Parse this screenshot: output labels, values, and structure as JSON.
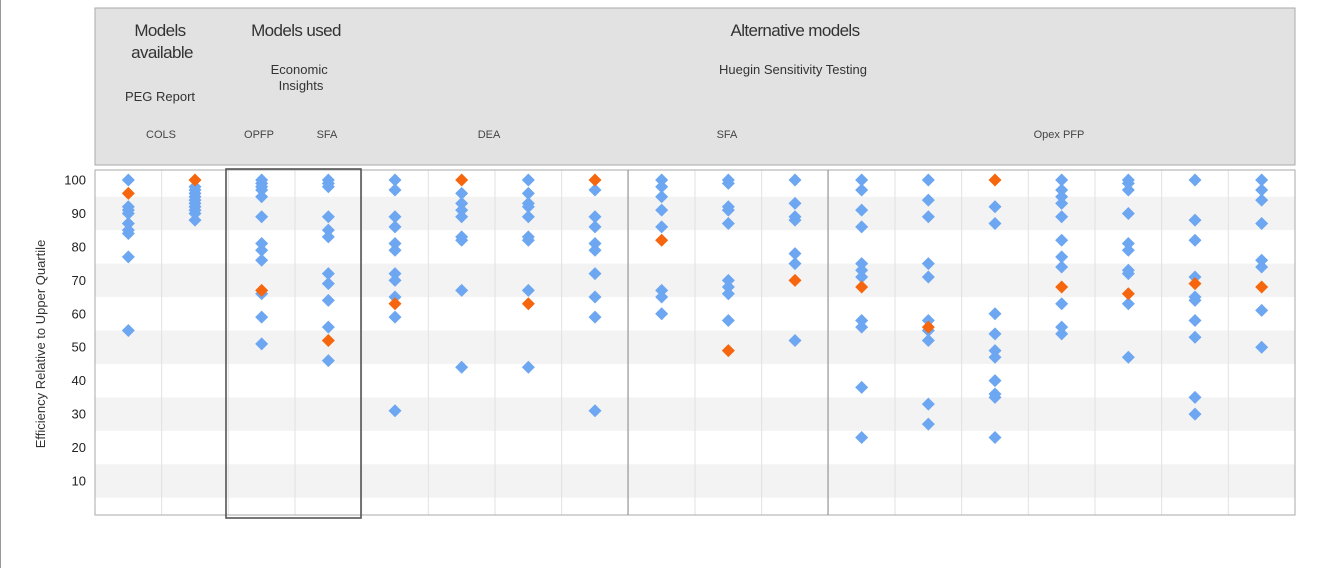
{
  "header": {
    "group_titles": [
      {
        "id": "models-available",
        "lines": [
          "Models",
          "available"
        ]
      },
      {
        "id": "models-used",
        "lines": [
          "Models used"
        ]
      },
      {
        "id": "alternative-models",
        "lines": [
          "Alternative models"
        ]
      }
    ],
    "sources": [
      {
        "id": "peg-report",
        "lines": [
          "PEG Report"
        ]
      },
      {
        "id": "economic-insights",
        "lines": [
          "Economic",
          "Insights"
        ]
      },
      {
        "id": "huegin-testing",
        "lines": [
          "Huegin Sensitivity Testing"
        ]
      }
    ],
    "method_labels": [
      "COLS",
      "OPFP",
      "SFA",
      "DEA",
      "SFA",
      "Opex PFP"
    ]
  },
  "colors": {
    "header_bg": "#e2e2e2",
    "band": "#f3f3f3",
    "border": "#aaaaaa",
    "other": "#6da6f1",
    "highlight": "#f5660f"
  },
  "chart_data": {
    "type": "scatter",
    "ylabel": "Efficiency Relative to Upper Quartile",
    "ylim": [
      0,
      100
    ],
    "yticks": [
      10,
      20,
      30,
      40,
      50,
      60,
      70,
      80,
      90,
      100
    ],
    "highlight_outlined_columns": [
      2,
      3
    ],
    "columns": [
      {
        "group": "COLS",
        "values": [
          100,
          91,
          90,
          92,
          87,
          84,
          85,
          77,
          55
        ],
        "highlight": 96
      },
      {
        "group": "COLS",
        "values": [
          98,
          97,
          96,
          95,
          94,
          93,
          92,
          91,
          90,
          88
        ],
        "highlight": 100
      },
      {
        "group": "OPFP",
        "values": [
          100,
          99,
          98,
          97,
          95,
          89,
          81,
          79,
          76,
          66,
          59,
          51
        ],
        "highlight": 67
      },
      {
        "group": "SFA",
        "values": [
          100,
          99,
          98,
          89,
          85,
          83,
          72,
          69,
          64,
          56,
          46
        ],
        "highlight": 52
      },
      {
        "group": "DEA",
        "values": [
          100,
          97,
          89,
          86,
          81,
          79,
          72,
          70,
          65,
          59,
          31
        ],
        "highlight": 63
      },
      {
        "group": "DEA",
        "values": [
          96,
          93,
          91,
          89,
          83,
          82,
          67,
          44
        ],
        "highlight": 100
      },
      {
        "group": "DEA",
        "values": [
          100,
          96,
          93,
          92,
          89,
          83,
          82,
          67,
          44
        ],
        "highlight": 63
      },
      {
        "group": "DEA",
        "values": [
          97,
          89,
          86,
          81,
          79,
          72,
          65,
          59,
          31
        ],
        "highlight": 100
      },
      {
        "group": "SFA",
        "values": [
          100,
          98,
          95,
          91,
          86,
          67,
          65,
          60
        ],
        "highlight": 82
      },
      {
        "group": "SFA",
        "values": [
          100,
          99,
          92,
          91,
          87,
          70,
          68,
          66,
          58
        ],
        "highlight": 49
      },
      {
        "group": "SFA",
        "values": [
          100,
          93,
          89,
          88,
          78,
          75,
          52
        ],
        "highlight": 70
      },
      {
        "group": "Opex PFP",
        "values": [
          100,
          97,
          91,
          86,
          75,
          73,
          71,
          58,
          56,
          38,
          23
        ],
        "highlight": 68
      },
      {
        "group": "Opex PFP",
        "values": [
          100,
          94,
          89,
          75,
          71,
          58,
          55,
          52,
          33,
          27
        ],
        "highlight": 56
      },
      {
        "group": "Opex PFP",
        "values": [
          92,
          87,
          60,
          54,
          49,
          47,
          40,
          36,
          35,
          23
        ],
        "highlight": 100
      },
      {
        "group": "Opex PFP",
        "values": [
          100,
          97,
          95,
          93,
          89,
          82,
          77,
          74,
          63,
          56,
          54
        ],
        "highlight": 68
      },
      {
        "group": "Opex PFP",
        "values": [
          100,
          99,
          97,
          90,
          81,
          79,
          73,
          72,
          63,
          47
        ],
        "highlight": 66
      },
      {
        "group": "Opex PFP",
        "values": [
          100,
          88,
          82,
          71,
          65,
          64,
          58,
          53,
          35,
          30
        ],
        "highlight": 69
      },
      {
        "group": "Opex PFP",
        "values": [
          100,
          97,
          94,
          87,
          76,
          74,
          61,
          50
        ],
        "highlight": 68
      }
    ]
  }
}
